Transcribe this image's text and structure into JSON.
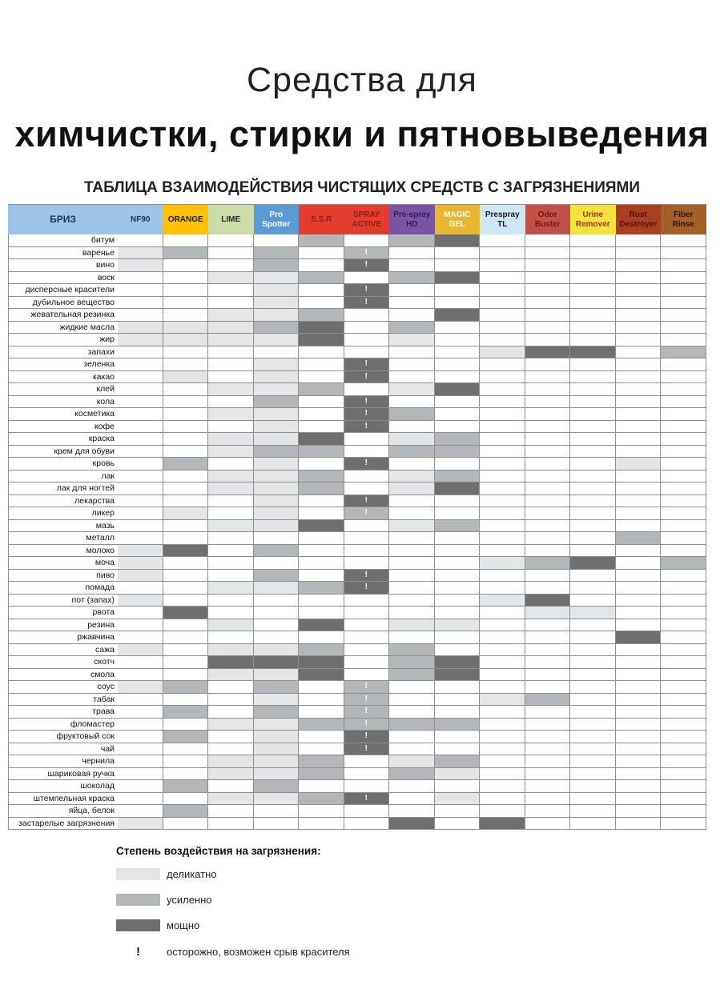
{
  "header": {
    "title_line1": "Средства для",
    "title_line2": "химчистки, стирки и пятновыведения",
    "subtitle": "ТАБЛИЦА ВЗАИМОДЕЙСТВИЯ ЧИСТЯЩИХ СРЕДСТВ С ЗАГРЯЗНЕНИЯМИ"
  },
  "colors": {
    "delicate": "#e3e5e7",
    "enhanced": "#b4b7ba",
    "powerful": "#6f6f6f",
    "caution_red": "#c42222",
    "grid_line": "#8f8f8f"
  },
  "table": {
    "corner_label": "БРИЗ",
    "corner_bg": "#9dc3e6",
    "corner_fg": "#17375e",
    "columns": [
      {
        "label": "NF90",
        "bg": "#9dc3e6",
        "fg": "#17375e"
      },
      {
        "label": "ORANGE",
        "bg": "#ffc000",
        "fg": "#1a1a1a"
      },
      {
        "label": "LIME",
        "bg": "#ccdcaa",
        "fg": "#2a2a2a"
      },
      {
        "label": "Pro Spotter",
        "bg": "#5b9bd5",
        "fg": "#ffffff"
      },
      {
        "label": "S.S.R",
        "bg": "#e43d30",
        "fg": "#8c1d12"
      },
      {
        "label": "SPRAY ACTIVE",
        "bg": "#e43d30",
        "fg": "#8c1d12"
      },
      {
        "label": "Pre-spray HD",
        "bg": "#7b53a5",
        "fg": "#31204a"
      },
      {
        "label": "MAGIC GEL",
        "bg": "#e9b62f",
        "fg": "#ffffff"
      },
      {
        "label": "Prespray TL",
        "bg": "#cfe6f5",
        "fg": "#1a1a1a"
      },
      {
        "label": "Odor Buster",
        "bg": "#c05048",
        "fg": "#6e1612"
      },
      {
        "label": "Urine Remover",
        "bg": "#f6e23c",
        "fg": "#a03020"
      },
      {
        "label": "Rust Destroyer",
        "bg": "#aa3f22",
        "fg": "#531004"
      },
      {
        "label": "Fiber Rinse",
        "bg": "#a5602a",
        "fg": "#2a1205"
      }
    ],
    "grade_legend_note": "cells: ''=none, 1=деликатно, 2=усиленно, 3=мощно, !=осторожно",
    "rows": [
      {
        "label": "битум",
        "cells": [
          "",
          "",
          "",
          "",
          "2",
          "",
          "2",
          "3",
          "",
          "",
          "",
          "",
          ""
        ]
      },
      {
        "label": "варенье",
        "cells": [
          "1",
          "2",
          "",
          "2",
          "",
          "2!",
          "",
          "",
          "",
          "",
          "",
          "",
          ""
        ]
      },
      {
        "label": "вино",
        "cells": [
          "1",
          "",
          "",
          "2",
          "",
          "3!",
          "",
          "",
          "",
          "",
          "",
          "",
          ""
        ]
      },
      {
        "label": "воск",
        "cells": [
          "",
          "",
          "1",
          "1",
          "2",
          "",
          "2",
          "3",
          "",
          "",
          "",
          "",
          ""
        ]
      },
      {
        "label": "дисперсные красители",
        "cells": [
          "",
          "",
          "",
          "1",
          "",
          "3!",
          "",
          "",
          "",
          "",
          "",
          "",
          ""
        ]
      },
      {
        "label": "дубильное вещество",
        "cells": [
          "",
          "",
          "",
          "1",
          "",
          "3!",
          "",
          "",
          "",
          "",
          "",
          "",
          ""
        ]
      },
      {
        "label": "жевательная резинка",
        "cells": [
          "",
          "",
          "1",
          "1",
          "2",
          "",
          "",
          "3",
          "",
          "",
          "",
          "",
          ""
        ]
      },
      {
        "label": "жидкие масла",
        "cells": [
          "1",
          "1",
          "1",
          "2",
          "3",
          "",
          "2",
          "",
          "",
          "",
          "",
          "",
          ""
        ]
      },
      {
        "label": "жир",
        "cells": [
          "1",
          "1",
          "1",
          "1",
          "3",
          "",
          "1",
          "",
          "",
          "",
          "",
          "",
          ""
        ]
      },
      {
        "label": "запахи",
        "cells": [
          "",
          "",
          "",
          "",
          "",
          "",
          "",
          "",
          "1",
          "3",
          "3",
          "",
          "2"
        ]
      },
      {
        "label": "зеленка",
        "cells": [
          "",
          "",
          "",
          "1",
          "",
          "3!",
          "",
          "",
          "",
          "",
          "",
          "",
          ""
        ]
      },
      {
        "label": "какао",
        "cells": [
          "",
          "1",
          "",
          "1",
          "",
          "3!",
          "",
          "",
          "",
          "",
          "",
          "",
          ""
        ]
      },
      {
        "label": "клей",
        "cells": [
          "",
          "",
          "1",
          "1",
          "2",
          "",
          "1",
          "3",
          "",
          "",
          "",
          "",
          ""
        ]
      },
      {
        "label": "кола",
        "cells": [
          "",
          "",
          "",
          "2",
          "",
          "3!",
          "",
          "",
          "",
          "",
          "",
          "",
          ""
        ]
      },
      {
        "label": "косметика",
        "cells": [
          "",
          "",
          "1",
          "1",
          "",
          "3!",
          "2",
          "",
          "",
          "",
          "",
          "",
          ""
        ]
      },
      {
        "label": "кофе",
        "cells": [
          "",
          "",
          "",
          "1",
          "",
          "3!",
          "",
          "",
          "",
          "",
          "",
          "",
          ""
        ]
      },
      {
        "label": "краска",
        "cells": [
          "",
          "",
          "1",
          "1",
          "3",
          "",
          "1",
          "2",
          "",
          "",
          "",
          "",
          ""
        ]
      },
      {
        "label": "крем для обуви",
        "cells": [
          "",
          "",
          "1",
          "2",
          "2",
          "",
          "2",
          "2",
          "",
          "",
          "",
          "",
          ""
        ]
      },
      {
        "label": "кровь",
        "cells": [
          "",
          "2",
          "",
          "1",
          "",
          "3!",
          "",
          "",
          "",
          "",
          "",
          "1",
          ""
        ]
      },
      {
        "label": "лак",
        "cells": [
          "",
          "",
          "1",
          "1",
          "2",
          "",
          "1",
          "2",
          "",
          "",
          "",
          "",
          ""
        ]
      },
      {
        "label": "лак для ногтей",
        "cells": [
          "",
          "",
          "1",
          "1",
          "2",
          "",
          "1",
          "3",
          "",
          "",
          "",
          "",
          ""
        ]
      },
      {
        "label": "лекарства",
        "cells": [
          "",
          "",
          "",
          "1",
          "",
          "3!",
          "",
          "",
          "",
          "",
          "",
          "",
          ""
        ]
      },
      {
        "label": "ликер",
        "cells": [
          "",
          "1",
          "",
          "1",
          "",
          "2!",
          "",
          "",
          "",
          "",
          "",
          "",
          ""
        ]
      },
      {
        "label": "мазь",
        "cells": [
          "",
          "",
          "1",
          "1",
          "3",
          "",
          "1",
          "2",
          "",
          "",
          "",
          "",
          ""
        ]
      },
      {
        "label": "металл",
        "cells": [
          "",
          "",
          "",
          "",
          "",
          "",
          "",
          "",
          "",
          "",
          "",
          "2",
          ""
        ]
      },
      {
        "label": "молоко",
        "cells": [
          "1",
          "3",
          "",
          "2",
          "",
          "",
          "",
          "",
          "",
          "",
          "",
          "",
          ""
        ]
      },
      {
        "label": "моча",
        "cells": [
          "1",
          "",
          "",
          "",
          "",
          "",
          "",
          "",
          "1",
          "2",
          "3",
          "",
          "2"
        ]
      },
      {
        "label": "пиво",
        "cells": [
          "1",
          "",
          "",
          "2",
          "",
          "3!",
          "",
          "",
          "",
          "",
          "",
          "",
          ""
        ]
      },
      {
        "label": "помада",
        "cells": [
          "",
          "",
          "1",
          "1",
          "2",
          "3!",
          "",
          "",
          "",
          "",
          "",
          "",
          ""
        ]
      },
      {
        "label": "пот (запах)",
        "cells": [
          "1",
          "",
          "",
          "",
          "",
          "",
          "",
          "",
          "1",
          "3",
          "",
          "",
          ""
        ]
      },
      {
        "label": "рвота",
        "cells": [
          "",
          "3",
          "",
          "",
          "",
          "",
          "",
          "",
          "",
          "1",
          "1",
          "",
          ""
        ]
      },
      {
        "label": "резина",
        "cells": [
          "",
          "",
          "1",
          "",
          "3",
          "",
          "1",
          "1",
          "",
          "",
          "",
          "",
          ""
        ]
      },
      {
        "label": "ржавчина",
        "cells": [
          "",
          "",
          "",
          "",
          "",
          "",
          "",
          "",
          "",
          "",
          "",
          "3",
          ""
        ]
      },
      {
        "label": "сажа",
        "cells": [
          "1",
          "",
          "1",
          "1",
          "2",
          "",
          "2",
          "",
          "",
          "",
          "",
          "",
          ""
        ]
      },
      {
        "label": "скотч",
        "cells": [
          "",
          "",
          "3",
          "3",
          "3",
          "",
          "2",
          "3",
          "",
          "",
          "",
          "",
          ""
        ]
      },
      {
        "label": "смола",
        "cells": [
          "",
          "",
          "1",
          "1",
          "3",
          "",
          "2",
          "3",
          "",
          "",
          "",
          "",
          ""
        ]
      },
      {
        "label": "соус",
        "cells": [
          "1",
          "2",
          "",
          "2",
          "",
          "2!",
          "",
          "",
          "",
          "",
          "",
          "",
          ""
        ]
      },
      {
        "label": "табак",
        "cells": [
          "",
          "",
          "",
          "1",
          "",
          "2!",
          "",
          "",
          "1",
          "2",
          "",
          "",
          ""
        ]
      },
      {
        "label": "трава",
        "cells": [
          "",
          "2",
          "",
          "2",
          "",
          "2!",
          "",
          "",
          "",
          "",
          "",
          "",
          ""
        ]
      },
      {
        "label": "фломастер",
        "cells": [
          "",
          "",
          "1",
          "1",
          "2",
          "2!",
          "2",
          "2",
          "",
          "",
          "",
          "",
          ""
        ]
      },
      {
        "label": "фруктовый сок",
        "cells": [
          "",
          "2",
          "",
          "1",
          "",
          "3!",
          "",
          "",
          "",
          "",
          "",
          "",
          ""
        ]
      },
      {
        "label": "чай",
        "cells": [
          "",
          "",
          "",
          "1",
          "",
          "3!",
          "",
          "",
          "",
          "",
          "",
          "",
          ""
        ]
      },
      {
        "label": "чернила",
        "cells": [
          "",
          "",
          "1",
          "1",
          "2",
          "",
          "1",
          "2",
          "",
          "",
          "",
          "",
          ""
        ]
      },
      {
        "label": "шариковая ручка",
        "cells": [
          "",
          "",
          "1",
          "1",
          "2",
          "",
          "2",
          "1",
          "",
          "",
          "",
          "",
          ""
        ]
      },
      {
        "label": "шоколад",
        "cells": [
          "",
          "2",
          "",
          "2",
          "",
          "",
          "",
          "",
          "",
          "",
          "",
          "",
          ""
        ]
      },
      {
        "label": "штемпельная краска",
        "cells": [
          "",
          "",
          "1",
          "1",
          "2",
          "3!",
          "",
          "1",
          "",
          "",
          "",
          "",
          ""
        ]
      },
      {
        "label": "яйца, белок",
        "cells": [
          "",
          "2",
          "",
          "",
          "",
          "",
          "",
          "",
          "",
          "",
          "",
          "",
          ""
        ]
      },
      {
        "label": "застарелые загрязнения",
        "cells": [
          "1",
          "",
          "",
          "",
          "",
          "",
          "3",
          "",
          "3",
          "",
          "",
          "",
          ""
        ]
      }
    ]
  },
  "legend": {
    "title": "Степень воздействия на загрязнения:",
    "items": [
      {
        "shade": "1",
        "label": "деликатно"
      },
      {
        "shade": "2",
        "label": "усиленно"
      },
      {
        "shade": "3",
        "label": "мощно"
      }
    ],
    "caution": {
      "symbol": "!",
      "label": "осторожно, возможен срыв красителя"
    }
  }
}
